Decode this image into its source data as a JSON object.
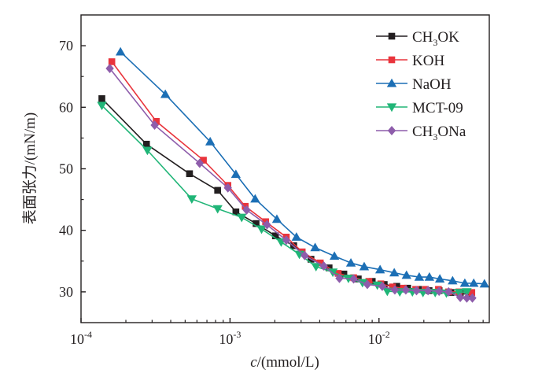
{
  "chart_data": {
    "type": "line",
    "xscale": "log",
    "xlabel_italic": "c",
    "xlabel_rest": "/(mmol/L)",
    "ylabel": "表面张力/(mN/m)",
    "xlim": [
      0.0001,
      0.055
    ],
    "ylim": [
      25,
      75
    ],
    "xticks": [
      {
        "value": 0.0001,
        "base": "10",
        "exp": "-4"
      },
      {
        "value": 0.001,
        "base": "10",
        "exp": "-3"
      },
      {
        "value": 0.01,
        "base": "10",
        "exp": "-2"
      }
    ],
    "yticks": [
      30,
      40,
      50,
      60,
      70
    ],
    "grid": false,
    "legend_position": "top-right",
    "series": [
      {
        "name": "CH3OK",
        "legend_parts": [
          "CH",
          "3",
          "OK"
        ],
        "color": "#231f20",
        "marker": "square",
        "x": [
          0.000138,
          0.000275,
          0.000535,
          0.000826,
          0.001095,
          0.001496,
          0.002018,
          0.002676,
          0.003495,
          0.004625,
          0.00581,
          0.00726,
          0.00901,
          0.01084,
          0.01316,
          0.01558,
          0.01842,
          0.02168,
          0.02532,
          0.03044,
          0.03512,
          0.04163
        ],
        "y": [
          61.4,
          54.0,
          49.2,
          46.5,
          43.0,
          41.1,
          39.1,
          37.5,
          35.3,
          33.9,
          32.9,
          32.1,
          31.7,
          31.2,
          30.9,
          30.6,
          30.4,
          30.2,
          30.2,
          29.9,
          29.7,
          29.6
        ]
      },
      {
        "name": "KOH",
        "legend_parts": [
          "KOH"
        ],
        "color": "#e9343c",
        "marker": "square",
        "x": [
          0.000161,
          0.00032,
          0.000663,
          0.000968,
          0.001265,
          0.001734,
          0.002387,
          0.003052,
          0.004036,
          0.005322,
          0.006758,
          0.00855,
          0.01029,
          0.01233,
          0.01459,
          0.01763,
          0.02053,
          0.02506,
          0.02933,
          0.03445,
          0.04197
        ],
        "y": [
          67.4,
          57.7,
          51.4,
          47.3,
          43.9,
          41.4,
          38.9,
          36.5,
          34.7,
          33.0,
          32.3,
          31.7,
          31.3,
          30.8,
          30.6,
          30.4,
          30.4,
          30.4,
          30.0,
          30.0,
          29.9
        ]
      },
      {
        "name": "NaOH",
        "legend_parts": [
          "NaOH"
        ],
        "color": "#1c6fb5",
        "marker": "triangle",
        "x": [
          0.000184,
          0.000368,
          0.000736,
          0.001095,
          0.001475,
          0.002063,
          0.002792,
          0.003727,
          0.005022,
          0.006477,
          0.007956,
          0.01017,
          0.01266,
          0.0153,
          0.01862,
          0.0218,
          0.02561,
          0.03119,
          0.03768,
          0.04324,
          0.05103
        ],
        "y": [
          69.0,
          62.1,
          54.4,
          49.1,
          45.1,
          41.8,
          38.9,
          37.2,
          35.8,
          34.7,
          34.1,
          33.6,
          33.1,
          32.7,
          32.4,
          32.4,
          32.1,
          31.8,
          31.4,
          31.4,
          31.3
        ]
      },
      {
        "name": "MCT-09",
        "legend_parts": [
          "MCT-09"
        ],
        "color": "#20b577",
        "marker": "triangle-down",
        "x": [
          0.000138,
          0.000279,
          0.000554,
          0.000826,
          0.001198,
          0.001629,
          0.002205,
          0.002922,
          0.003778,
          0.004899,
          0.006235,
          0.007751,
          0.00975,
          0.01137,
          0.01379,
          0.01676,
          0.01974,
          0.02384,
          0.02836,
          0.03445,
          0.03886
        ],
        "y": [
          60.3,
          53.0,
          45.1,
          43.5,
          42.1,
          40.2,
          38.1,
          36.1,
          34.1,
          33.2,
          32.2,
          31.5,
          31.1,
          30.1,
          30.0,
          30.0,
          29.9,
          29.9,
          29.8,
          29.9,
          30.0
        ]
      },
      {
        "name": "CH3ONa",
        "legend_parts": [
          "CH",
          "3",
          "ONa"
        ],
        "color": "#8e5dab",
        "marker": "diamond",
        "x": [
          0.000156,
          0.000312,
          0.000626,
          0.000968,
          0.001293,
          0.001772,
          0.002387,
          0.003171,
          0.004257,
          0.005425,
          0.006758,
          0.008351,
          0.01052,
          0.01278,
          0.01514,
          0.01786,
          0.02135,
          0.02532,
          0.02933,
          0.03512,
          0.03886,
          0.04235
        ],
        "y": [
          66.3,
          57.1,
          50.9,
          46.9,
          43.3,
          40.9,
          38.4,
          35.9,
          34.2,
          32.2,
          32.1,
          31.2,
          30.9,
          30.3,
          30.3,
          30.2,
          30.2,
          30.1,
          30.0,
          29.1,
          29.0,
          29.0
        ]
      }
    ]
  }
}
